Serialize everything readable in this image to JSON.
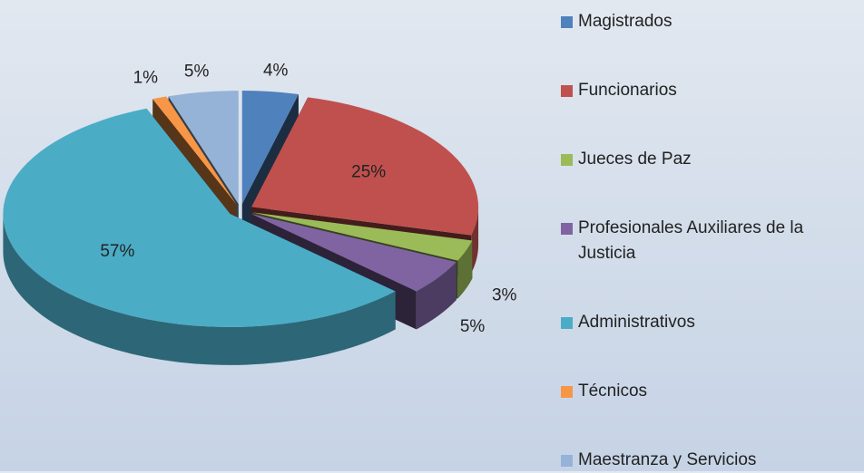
{
  "chart_data": {
    "type": "pie",
    "categories": [
      "Magistrados",
      "Funcionarios",
      "Jueces de Paz",
      "Profesionales Auxiliares de la Justicia",
      "Administrativos",
      "Técnicos",
      "Maestranza y Servicios"
    ],
    "values": [
      4,
      25,
      3,
      5,
      57,
      1,
      5
    ],
    "value_labels": [
      "4%",
      "25%",
      "3%",
      "5%",
      "57%",
      "1%",
      "5%"
    ],
    "colors": [
      "#4f81bd",
      "#c0504d",
      "#9bbb59",
      "#8064a2",
      "#4bacc6",
      "#f79646",
      "#95b3d7"
    ],
    "legend": "right"
  }
}
